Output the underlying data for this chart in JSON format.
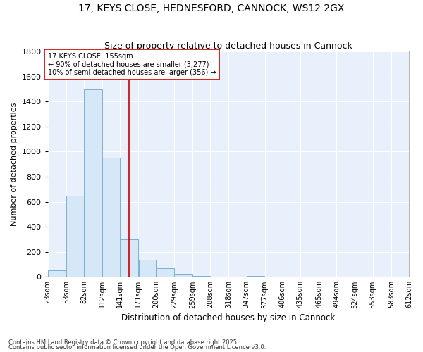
{
  "title1": "17, KEYS CLOSE, HEDNESFORD, CANNOCK, WS12 2GX",
  "title2": "Size of property relative to detached houses in Cannock",
  "xlabel": "Distribution of detached houses by size in Cannock",
  "ylabel": "Number of detached properties",
  "bar_color": "#d6e8f7",
  "bar_edge_color": "#7ab0d8",
  "background_color": "#e8f0fb",
  "grid_color": "#ffffff",
  "fig_color": "#ffffff",
  "bin_labels": [
    "23sqm",
    "53sqm",
    "82sqm",
    "112sqm",
    "141sqm",
    "171sqm",
    "200sqm",
    "229sqm",
    "259sqm",
    "288sqm",
    "318sqm",
    "347sqm",
    "377sqm",
    "406sqm",
    "435sqm",
    "465sqm",
    "494sqm",
    "524sqm",
    "553sqm",
    "583sqm",
    "612sqm"
  ],
  "bar_heights": [
    50,
    650,
    1500,
    950,
    300,
    135,
    70,
    25,
    10,
    0,
    0,
    10,
    0,
    0,
    0,
    0,
    0,
    0,
    0,
    0
  ],
  "bin_edges": [
    23,
    53,
    82,
    112,
    141,
    171,
    200,
    229,
    259,
    288,
    318,
    347,
    377,
    406,
    435,
    465,
    494,
    524,
    553,
    583,
    612
  ],
  "vline_x": 155,
  "vline_color": "#cc0000",
  "annotation_text": "17 KEYS CLOSE: 155sqm\n← 90% of detached houses are smaller (3,277)\n10% of semi-detached houses are larger (356) →",
  "annotation_box_color": "#ffffff",
  "annotation_box_edge": "#cc0000",
  "ylim": [
    0,
    1800
  ],
  "yticks": [
    0,
    200,
    400,
    600,
    800,
    1000,
    1200,
    1400,
    1600,
    1800
  ],
  "footnote1": "Contains HM Land Registry data © Crown copyright and database right 2025.",
  "footnote2": "Contains public sector information licensed under the Open Government Licence v3.0."
}
